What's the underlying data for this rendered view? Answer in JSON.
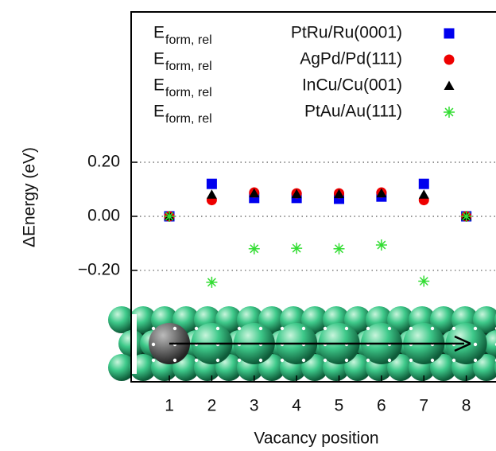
{
  "chart_data": {
    "type": "scatter",
    "xlabel": "Vacancy position",
    "ylabel": "ΔEnergy (eV)",
    "legend_label_prefix": "E",
    "legend_label_subscript": "form, rel",
    "x": [
      1,
      2,
      3,
      4,
      5,
      6,
      7,
      8
    ],
    "xlim": [
      0.1,
      8.7
    ],
    "xticks": [
      1,
      2,
      3,
      4,
      5,
      6,
      7,
      8
    ],
    "ylim": [
      -0.612,
      0.756
    ],
    "yticks": [
      {
        "value": -0.2,
        "label": "−0.20"
      },
      {
        "value": 0,
        "label": "0.00"
      },
      {
        "value": 0.2,
        "label": "0.20"
      }
    ],
    "grid": true,
    "legend": "upper right",
    "series": [
      {
        "name": "PtRu/Ru(0001)",
        "color": "#0000ee",
        "marker": "square",
        "values": [
          0,
          0.12,
          0.068,
          0.068,
          0.065,
          0.073,
          0.12,
          0
        ]
      },
      {
        "name": "AgPd/Pd(111)",
        "color": "#ee0000",
        "marker": "circle",
        "values": [
          0,
          0.06,
          0.088,
          0.085,
          0.085,
          0.088,
          0.06,
          0
        ]
      },
      {
        "name": "InCu/Cu(001)",
        "color": "#000000",
        "marker": "triangle",
        "values": [
          0,
          0.08,
          0.085,
          0.082,
          0.082,
          0.085,
          0.08,
          0
        ]
      },
      {
        "name": "PtAu/Au(111)",
        "color": "#33dd33",
        "marker": "star",
        "values": [
          0,
          -0.244,
          -0.12,
          -0.118,
          -0.12,
          -0.106,
          -0.24,
          0
        ]
      }
    ]
  }
}
